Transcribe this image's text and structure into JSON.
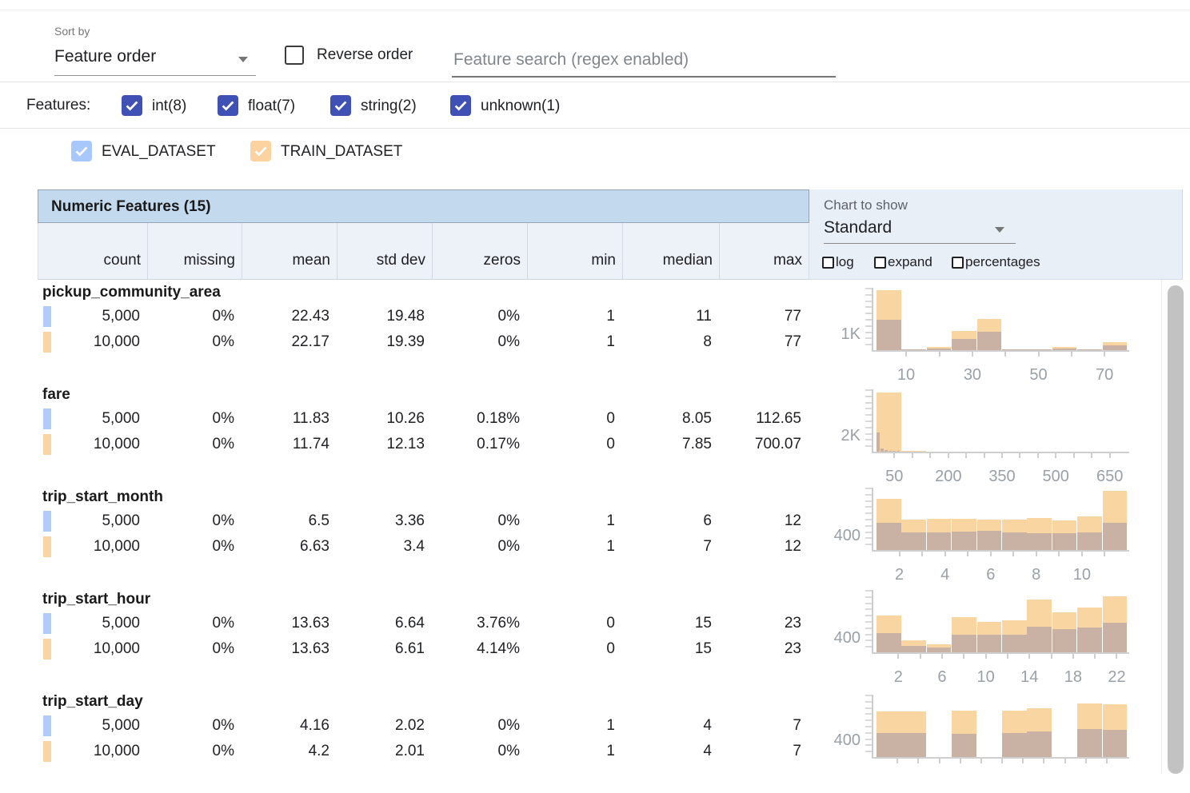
{
  "toolbar": {
    "sort_by_label": "Sort by",
    "sort_by_value": "Feature order",
    "reverse_order_label": "Reverse order",
    "search_placeholder": "Feature search (regex enabled)"
  },
  "feature_filters": {
    "label": "Features:",
    "checkbox_color": "#3f51b5",
    "types": [
      {
        "label": "int(8)",
        "checked": true
      },
      {
        "label": "float(7)",
        "checked": true
      },
      {
        "label": "string(2)",
        "checked": true
      },
      {
        "label": "unknown(1)",
        "checked": true
      }
    ]
  },
  "datasets": [
    {
      "name": "EVAL_DATASET",
      "checked": true,
      "color": "#a8c7fa"
    },
    {
      "name": "TRAIN_DATASET",
      "checked": true,
      "color": "#fbd2a0"
    }
  ],
  "numeric_table": {
    "title": "Numeric Features (15)",
    "columns": [
      "count",
      "missing",
      "mean",
      "std dev",
      "zeros",
      "min",
      "median",
      "max"
    ],
    "rows": [
      {
        "feature": "pickup_community_area",
        "eval": [
          "5,000",
          "0%",
          "22.43",
          "19.48",
          "0%",
          "1",
          "11",
          "77"
        ],
        "train": [
          "10,000",
          "0%",
          "22.17",
          "19.39",
          "0%",
          "1",
          "8",
          "77"
        ]
      },
      {
        "feature": "fare",
        "eval": [
          "5,000",
          "0%",
          "11.83",
          "10.26",
          "0.18%",
          "0",
          "8.05",
          "112.65"
        ],
        "train": [
          "10,000",
          "0%",
          "11.74",
          "12.13",
          "0.17%",
          "0",
          "7.85",
          "700.07"
        ]
      },
      {
        "feature": "trip_start_month",
        "eval": [
          "5,000",
          "0%",
          "6.5",
          "3.36",
          "0%",
          "1",
          "6",
          "12"
        ],
        "train": [
          "10,000",
          "0%",
          "6.63",
          "3.4",
          "0%",
          "1",
          "7",
          "12"
        ]
      },
      {
        "feature": "trip_start_hour",
        "eval": [
          "5,000",
          "0%",
          "13.63",
          "6.64",
          "3.76%",
          "0",
          "15",
          "23"
        ],
        "train": [
          "10,000",
          "0%",
          "13.63",
          "6.61",
          "4.14%",
          "0",
          "15",
          "23"
        ]
      },
      {
        "feature": "trip_start_day",
        "eval": [
          "5,000",
          "0%",
          "4.16",
          "2.02",
          "0%",
          "1",
          "4",
          "7"
        ],
        "train": [
          "10,000",
          "0%",
          "4.2",
          "2.01",
          "0%",
          "1",
          "4",
          "7"
        ]
      }
    ],
    "swatch_colors": {
      "eval": "#b1ccfa",
      "train": "#f8d5a3"
    }
  },
  "chart_controls": {
    "label": "Chart to show",
    "selected": "Standard",
    "options": [
      {
        "label": "log",
        "checked": false
      },
      {
        "label": "expand",
        "checked": false
      },
      {
        "label": "percentages",
        "checked": false
      }
    ]
  },
  "chart_colors": {
    "train_bar": "#f9d5a2",
    "overlap_bar": "#c9b2a3",
    "axis": "#cfcfcf",
    "tick_label": "#9aa0a6"
  },
  "chart_data": [
    {
      "feature": "pickup_community_area",
      "type": "bar",
      "style": "overlaid-histogram",
      "series_names": [
        "TRAIN_DATASET",
        "EVAL_DATASET"
      ],
      "y_axis_label": "1K",
      "y_label_frac": 0.25,
      "x_ticks": [
        {
          "label": "10",
          "f": 0.118
        },
        {
          "label": "30",
          "f": 0.382
        },
        {
          "label": "50",
          "f": 0.645
        },
        {
          "label": "70",
          "f": 0.908
        }
      ],
      "minor_ticks": [
        0.118,
        0.25,
        0.382,
        0.513,
        0.645,
        0.776,
        0.908
      ],
      "bars": [
        {
          "x0": 0.0,
          "x1": 0.1,
          "train": 0.94,
          "eval": 0.47
        },
        {
          "x0": 0.1,
          "x1": 0.2,
          "train": 0.015,
          "eval": 0.008
        },
        {
          "x0": 0.2,
          "x1": 0.3,
          "train": 0.05,
          "eval": 0.02
        },
        {
          "x0": 0.3,
          "x1": 0.4,
          "train": 0.3,
          "eval": 0.17
        },
        {
          "x0": 0.4,
          "x1": 0.5,
          "train": 0.49,
          "eval": 0.29
        },
        {
          "x0": 0.5,
          "x1": 0.6,
          "train": 0.01,
          "eval": 0.005
        },
        {
          "x0": 0.6,
          "x1": 0.7,
          "train": 0.01,
          "eval": 0.005
        },
        {
          "x0": 0.7,
          "x1": 0.8,
          "train": 0.05,
          "eval": 0.02
        },
        {
          "x0": 0.8,
          "x1": 0.9,
          "train": 0.01,
          "eval": 0.005
        },
        {
          "x0": 0.9,
          "x1": 1.0,
          "train": 0.13,
          "eval": 0.07
        }
      ]
    },
    {
      "feature": "fare",
      "type": "bar",
      "style": "overlaid-histogram",
      "series_names": [
        "TRAIN_DATASET",
        "EVAL_DATASET"
      ],
      "y_axis_label": "2K",
      "y_label_frac": 0.25,
      "x_ticks": [
        {
          "label": "50",
          "f": 0.071
        },
        {
          "label": "200",
          "f": 0.286
        },
        {
          "label": "350",
          "f": 0.5
        },
        {
          "label": "500",
          "f": 0.714
        },
        {
          "label": "650",
          "f": 0.929
        }
      ],
      "minor_ticks": [
        0.071,
        0.143,
        0.214,
        0.286,
        0.357,
        0.429,
        0.5,
        0.571,
        0.643,
        0.714,
        0.786,
        0.857,
        0.929
      ],
      "bars": [
        {
          "x0": 0.0,
          "x1": 0.1,
          "train": 0.93,
          "eval": 0
        },
        {
          "x0": 0.1,
          "x1": 0.2,
          "train": 0.006,
          "eval": 0
        },
        {
          "x0": 0.0,
          "x1": 0.016,
          "train": 0,
          "eval": 0.3
        },
        {
          "x0": 0.016,
          "x1": 0.032,
          "train": 0,
          "eval": 0.05
        },
        {
          "x0": 0.032,
          "x1": 0.048,
          "train": 0,
          "eval": 0.02
        },
        {
          "x0": 0.048,
          "x1": 0.064,
          "train": 0,
          "eval": 0.012
        },
        {
          "x0": 0.064,
          "x1": 0.08,
          "train": 0,
          "eval": 0.008
        },
        {
          "x0": 0.08,
          "x1": 0.096,
          "train": 0,
          "eval": 0.006
        }
      ]
    },
    {
      "feature": "trip_start_month",
      "type": "bar",
      "style": "overlaid-histogram",
      "series_names": [
        "TRAIN_DATASET",
        "EVAL_DATASET"
      ],
      "y_axis_label": "400",
      "y_label_frac": 0.23,
      "x_ticks": [
        {
          "label": "2",
          "f": 0.091
        },
        {
          "label": "4",
          "f": 0.273
        },
        {
          "label": "6",
          "f": 0.455
        },
        {
          "label": "8",
          "f": 0.636
        },
        {
          "label": "10",
          "f": 0.818
        }
      ],
      "minor_ticks": [
        0.091,
        0.182,
        0.273,
        0.364,
        0.455,
        0.545,
        0.636,
        0.727,
        0.818,
        0.909
      ],
      "bars": [
        {
          "x0": 0.0,
          "x1": 0.1,
          "train": 0.8,
          "eval": 0.42
        },
        {
          "x0": 0.1,
          "x1": 0.2,
          "train": 0.47,
          "eval": 0.27
        },
        {
          "x0": 0.2,
          "x1": 0.3,
          "train": 0.49,
          "eval": 0.27
        },
        {
          "x0": 0.3,
          "x1": 0.4,
          "train": 0.49,
          "eval": 0.29
        },
        {
          "x0": 0.4,
          "x1": 0.5,
          "train": 0.47,
          "eval": 0.3
        },
        {
          "x0": 0.5,
          "x1": 0.6,
          "train": 0.47,
          "eval": 0.27
        },
        {
          "x0": 0.6,
          "x1": 0.7,
          "train": 0.5,
          "eval": 0.26
        },
        {
          "x0": 0.7,
          "x1": 0.8,
          "train": 0.46,
          "eval": 0.26
        },
        {
          "x0": 0.8,
          "x1": 0.9,
          "train": 0.53,
          "eval": 0.27
        },
        {
          "x0": 0.9,
          "x1": 1.0,
          "train": 0.92,
          "eval": 0.43
        }
      ]
    },
    {
      "feature": "trip_start_hour",
      "type": "bar",
      "style": "overlaid-histogram",
      "series_names": [
        "TRAIN_DATASET",
        "EVAL_DATASET"
      ],
      "y_axis_label": "400",
      "y_label_frac": 0.23,
      "x_ticks": [
        {
          "label": "2",
          "f": 0.087
        },
        {
          "label": "6",
          "f": 0.261
        },
        {
          "label": "10",
          "f": 0.435
        },
        {
          "label": "14",
          "f": 0.609
        },
        {
          "label": "18",
          "f": 0.783
        },
        {
          "label": "22",
          "f": 0.957
        }
      ],
      "minor_ticks": [
        0.087,
        0.174,
        0.261,
        0.348,
        0.435,
        0.522,
        0.609,
        0.696,
        0.783,
        0.87,
        0.957
      ],
      "bars": [
        {
          "x0": 0.0,
          "x1": 0.1,
          "train": 0.58,
          "eval": 0.3
        },
        {
          "x0": 0.1,
          "x1": 0.2,
          "train": 0.19,
          "eval": 0.1
        },
        {
          "x0": 0.2,
          "x1": 0.3,
          "train": 0.12,
          "eval": 0.075
        },
        {
          "x0": 0.3,
          "x1": 0.4,
          "train": 0.55,
          "eval": 0.28
        },
        {
          "x0": 0.4,
          "x1": 0.5,
          "train": 0.47,
          "eval": 0.27
        },
        {
          "x0": 0.5,
          "x1": 0.6,
          "train": 0.5,
          "eval": 0.28
        },
        {
          "x0": 0.6,
          "x1": 0.7,
          "train": 0.83,
          "eval": 0.4
        },
        {
          "x0": 0.7,
          "x1": 0.8,
          "train": 0.62,
          "eval": 0.36
        },
        {
          "x0": 0.8,
          "x1": 0.9,
          "train": 0.7,
          "eval": 0.39
        },
        {
          "x0": 0.9,
          "x1": 1.0,
          "train": 0.88,
          "eval": 0.46
        }
      ]
    },
    {
      "feature": "trip_start_day",
      "type": "bar",
      "style": "overlaid-histogram",
      "series_names": [
        "TRAIN_DATASET",
        "EVAL_DATASET"
      ],
      "y_axis_label": "400",
      "y_label_frac": 0.26,
      "x_ticks": [],
      "minor_ticks": [
        0.083,
        0.167,
        0.25,
        0.333,
        0.417,
        0.5,
        0.583,
        0.667,
        0.75,
        0.833,
        0.917
      ],
      "bars": [
        {
          "x0": 0.0,
          "x1": 0.1,
          "train": 0.71,
          "eval": 0.38
        },
        {
          "x0": 0.1,
          "x1": 0.2,
          "train": 0.71,
          "eval": 0.37
        },
        {
          "x0": 0.2,
          "x1": 0.3,
          "train": 0,
          "eval": 0
        },
        {
          "x0": 0.3,
          "x1": 0.4,
          "train": 0.73,
          "eval": 0.36
        },
        {
          "x0": 0.4,
          "x1": 0.5,
          "train": 0,
          "eval": 0
        },
        {
          "x0": 0.5,
          "x1": 0.6,
          "train": 0.72,
          "eval": 0.38
        },
        {
          "x0": 0.6,
          "x1": 0.7,
          "train": 0.76,
          "eval": 0.4
        },
        {
          "x0": 0.7,
          "x1": 0.8,
          "train": 0,
          "eval": 0
        },
        {
          "x0": 0.8,
          "x1": 0.9,
          "train": 0.84,
          "eval": 0.44
        },
        {
          "x0": 0.9,
          "x1": 1.0,
          "train": 0.83,
          "eval": 0.43
        }
      ]
    }
  ]
}
